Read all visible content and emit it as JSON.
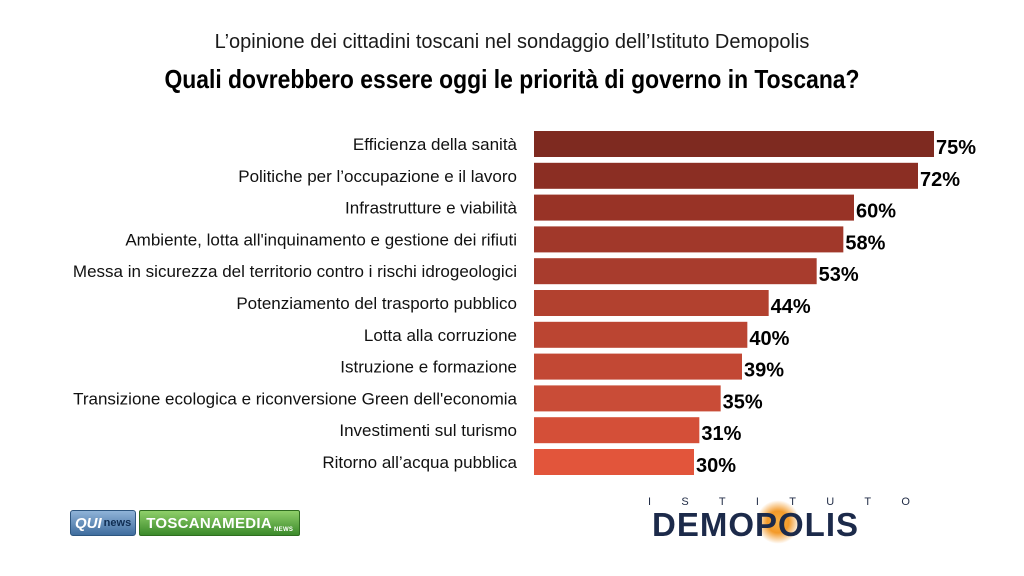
{
  "header": {
    "subtitle": "L’opinione dei cittadini toscani nel sondaggio dell’Istituto Demopolis",
    "title": "Quali dovrebbero essere oggi le priorità di governo in Toscana?"
  },
  "chart_data": {
    "type": "bar",
    "orientation": "horizontal",
    "title": "Quali dovrebbero essere oggi le priorità di governo in Toscana?",
    "subtitle": "L’opinione dei cittadini toscani nel sondaggio dell’Istituto Demopolis",
    "categories": [
      "Efficienza della sanità",
      "Politiche per l’occupazione e il lavoro",
      "Infrastrutture e viabilità",
      "Ambiente, lotta all'inquinamento e gestione dei rifiuti",
      "Messa in sicurezza del territorio contro i rischi idrogeologici",
      "Potenziamento del trasporto pubblico",
      "Lotta alla corruzione",
      "Istruzione e formazione",
      "Transizione ecologica e riconversione Green dell'economia",
      "Investimenti sul turismo",
      "Ritorno all’acqua pubblica"
    ],
    "values": [
      75,
      72,
      60,
      58,
      53,
      44,
      40,
      39,
      35,
      31,
      30
    ],
    "value_labels": [
      "75%",
      "72%",
      "60%",
      "58%",
      "53%",
      "44%",
      "40%",
      "39%",
      "35%",
      "31%",
      "30%"
    ],
    "unit": "%",
    "xlim": [
      0,
      75
    ],
    "bar_colors": [
      "#7e2a20",
      "#8b2e23",
      "#983326",
      "#a1382a",
      "#a83c2d",
      "#b2412f",
      "#bb4532",
      "#c24834",
      "#c94c37",
      "#d44f38",
      "#e2553b"
    ],
    "grid": false,
    "legend": "none"
  },
  "logos": {
    "qui": "QUI",
    "news": "news",
    "toscanamedia": "TOSCANAMEDIA",
    "toscanamedia_small": "NEWS",
    "istituto_letters": [
      "I",
      "S",
      "T",
      "I",
      "T",
      "U",
      "T",
      "O"
    ],
    "demopolis": "DEMOPOLIS"
  }
}
